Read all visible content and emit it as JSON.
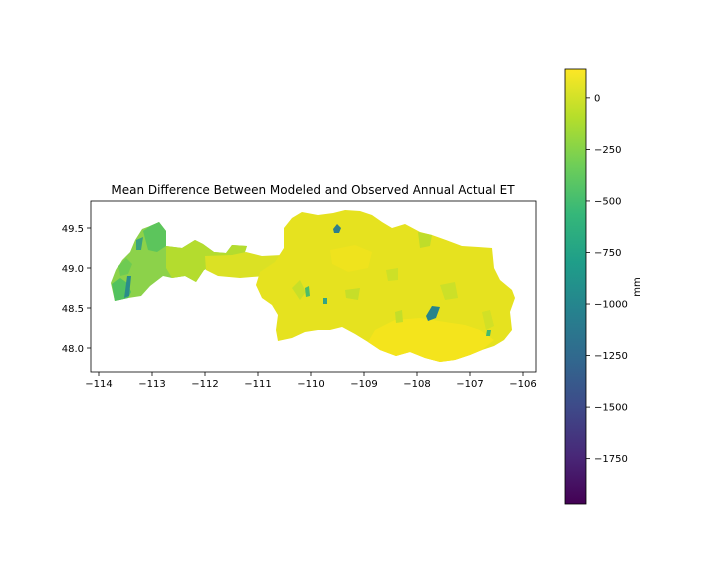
{
  "title": "Mean Difference Between Modeled and Observed Annual Actual ET",
  "x_axis": {
    "ticks": [
      "−114",
      "−113",
      "−112",
      "−111",
      "−110",
      "−109",
      "−108",
      "−107",
      "−106"
    ]
  },
  "y_axis": {
    "ticks": [
      "49.5",
      "49.0",
      "48.5",
      "48.0"
    ]
  },
  "colorbar": {
    "label": "mm",
    "ticks": [
      "0",
      "−250",
      "−500",
      "−750",
      "−1000",
      "−1250",
      "−1500",
      "−1750"
    ],
    "range": [
      -1970,
      140
    ],
    "colormap": "viridis",
    "colormap_stops": [
      "#440154",
      "#482878",
      "#3e4a89",
      "#31688e",
      "#26828e",
      "#1f9e89",
      "#35b779",
      "#6ece58",
      "#b5de2b",
      "#fde725"
    ]
  },
  "map": {
    "extent": {
      "lon": [
        -114.2,
        -105.8
      ],
      "lat": [
        47.7,
        49.85
      ]
    },
    "dominant_color": "#e8e21e",
    "accent_colors": {
      "western_basins": "#6dc94f",
      "dark_basins": "#23878c"
    }
  }
}
